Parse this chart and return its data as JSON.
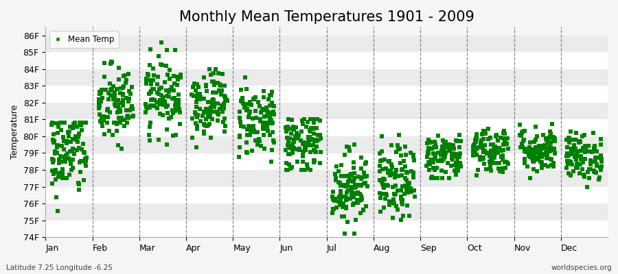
{
  "title": "Monthly Mean Temperatures 1901 - 2009",
  "ylabel": "Temperature",
  "subtitle_left": "Latitude 7.25 Longitude -6.25",
  "subtitle_right": "worldspecies.org",
  "legend_label": "Mean Temp",
  "marker_color": "#008000",
  "bg_light": "#f0f0f0",
  "bg_dark": "#e0e0e0",
  "bg_plot": "#f5f5f5",
  "ylim": [
    74,
    86.5
  ],
  "yticks": [
    74,
    75,
    76,
    77,
    78,
    79,
    80,
    81,
    82,
    83,
    84,
    85,
    86
  ],
  "ytick_labels": [
    "74F",
    "75F",
    "76F",
    "77F",
    "78F",
    "79F",
    "80F",
    "81F",
    "82F",
    "83F",
    "84F",
    "85F",
    "86F"
  ],
  "months": [
    "Jan",
    "Feb",
    "Mar",
    "Apr",
    "May",
    "Jun",
    "Jul",
    "Aug",
    "Sep",
    "Oct",
    "Nov",
    "Dec"
  ],
  "month_distributions": {
    "Jan": [
      79.0,
      1.3,
      74.8,
      80.8
    ],
    "Feb": [
      81.8,
      1.2,
      78.0,
      84.5
    ],
    "Mar": [
      82.5,
      1.1,
      79.5,
      86.3
    ],
    "Apr": [
      82.0,
      1.0,
      79.0,
      84.0
    ],
    "May": [
      81.0,
      1.1,
      78.5,
      83.5
    ],
    "Jun": [
      79.5,
      0.9,
      78.0,
      81.0
    ],
    "Jul": [
      77.0,
      1.1,
      74.2,
      79.5
    ],
    "Aug": [
      77.2,
      1.1,
      74.5,
      80.5
    ],
    "Sep": [
      78.8,
      0.7,
      77.5,
      80.5
    ],
    "Oct": [
      79.2,
      0.7,
      77.5,
      80.5
    ],
    "Nov": [
      79.2,
      0.7,
      77.5,
      80.8
    ],
    "Dec": [
      78.8,
      0.7,
      77.0,
      80.5
    ]
  },
  "n_years": 109,
  "title_fontsize": 15,
  "tick_fontsize": 9,
  "ylabel_fontsize": 9,
  "marker_size": 14,
  "dashed_color": "#555555",
  "band_colors": [
    "#ffffff",
    "#ebebeb"
  ]
}
